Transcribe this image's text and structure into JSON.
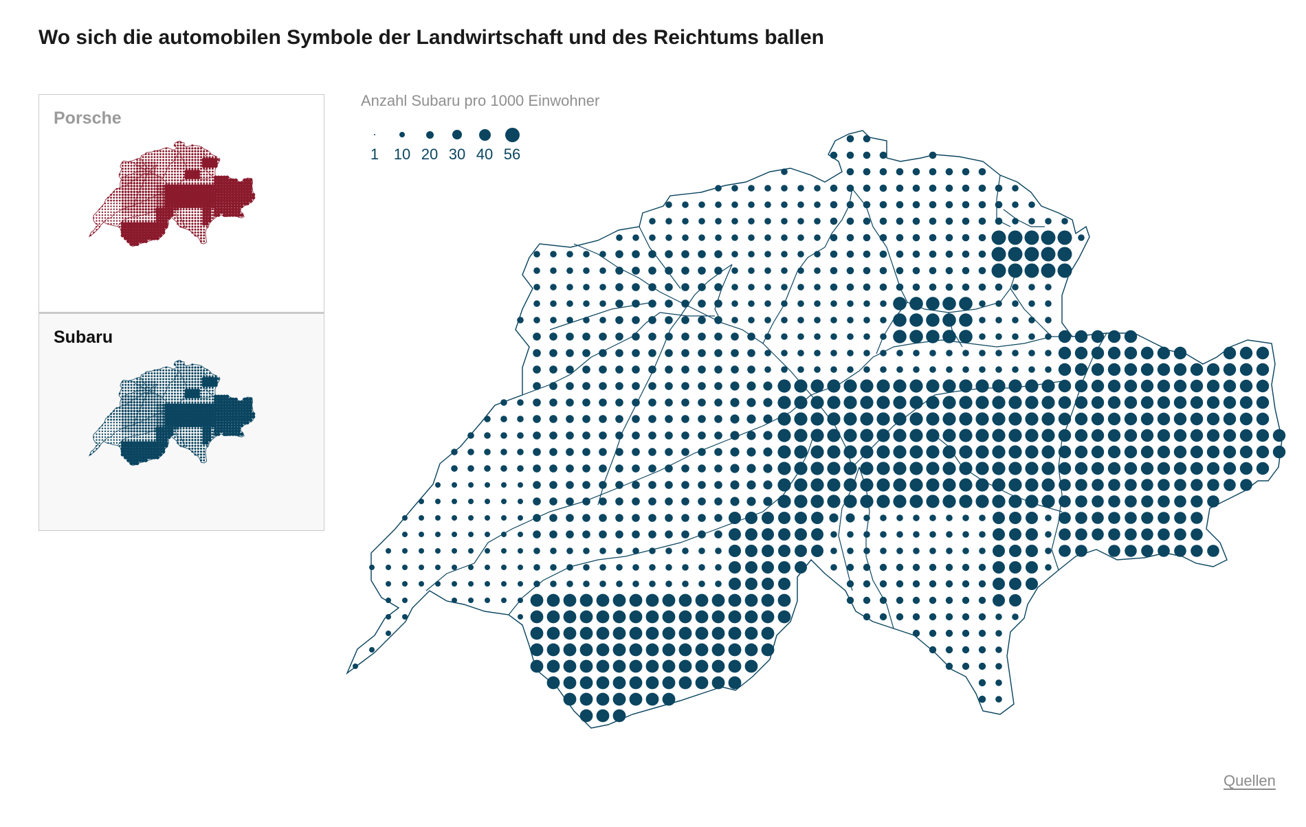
{
  "title": "Wo sich die automobilen Symbole der Landwirtschaft und des Reichtums ballen",
  "tabs": [
    {
      "label": "Porsche",
      "active": false,
      "color": "#8a1a2c"
    },
    {
      "label": "Subaru",
      "active": true,
      "color": "#0b4560"
    }
  ],
  "legend": {
    "title": "Anzahl Subaru pro 1000 Einwohner",
    "values": [
      "1",
      "10",
      "20",
      "30",
      "40",
      "56"
    ],
    "color": "#0b4560"
  },
  "sources_link": "Quellen",
  "colors": {
    "dot": "#0b4560",
    "border": "#0b4560",
    "porsche": "#8a1a2c"
  }
}
